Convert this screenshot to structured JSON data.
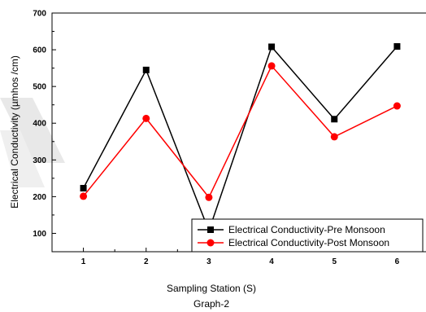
{
  "chart_data": {
    "type": "line",
    "x": [
      1,
      2,
      3,
      4,
      5,
      6
    ],
    "xlabel": "Sampling Station (S)",
    "ylabel": "Electrical Conductivity (µmhos /cm)",
    "caption": "Graph-2",
    "xlim": [
      0.5,
      6.5
    ],
    "ylim": [
      50,
      700
    ],
    "xticks": [
      1,
      2,
      3,
      4,
      5,
      6
    ],
    "yticks": [
      100,
      200,
      300,
      400,
      500,
      600,
      700
    ],
    "grid": false,
    "legend_position": "bottom-right",
    "series": [
      {
        "name": "Electrical Conductivity-Pre Monsoon",
        "color": "#000000",
        "marker": "square",
        "values": [
          223,
          545,
          107,
          608,
          411,
          609
        ]
      },
      {
        "name": "Electrical Conductivity-Post Monsoon",
        "color": "#ff0000",
        "marker": "circle",
        "values": [
          201,
          413,
          198,
          556,
          363,
          447
        ]
      }
    ]
  }
}
